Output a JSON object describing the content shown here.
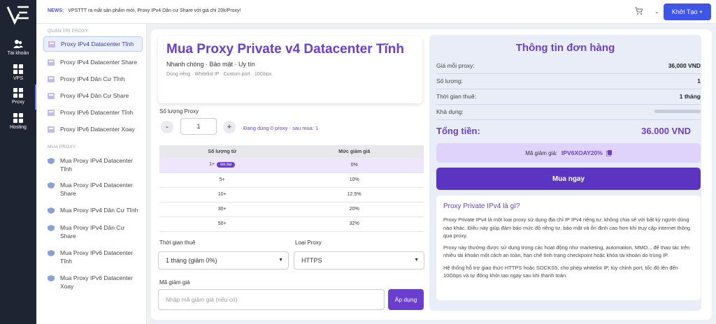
{
  "colors": {
    "primary": "#6a3fd0",
    "blue": "#3e55e8",
    "rail": "#1f2433"
  },
  "rail": {
    "items": [
      {
        "label": "Tài khoản",
        "icon": "user-icon"
      },
      {
        "label": "VPS",
        "icon": "grid-icon"
      },
      {
        "label": "Proxy",
        "icon": "grid-icon"
      },
      {
        "label": "Hosting",
        "icon": "grid-icon"
      }
    ]
  },
  "topbar": {
    "news_label": "NEWS:",
    "news_text": "VPSTTT ra mắt sản phẩm mới, Proxy IPv4 Dân cư Share với giá chỉ 20k/Proxy!",
    "create_label": "Khởi Tạo +"
  },
  "submenu": {
    "section1": "QUẢN TRỊ PROXY",
    "items1": [
      "Proxy IPv4 Datacenter Tĩnh",
      "Proxy IPv4 Datacenter Share",
      "Proxy IPv4 Dân Cư Tĩnh",
      "Proxy IPv4 Dân Cư Share",
      "Proxy IPv6 Datacenter Tĩnh",
      "Proxy IPv6 Datacenter Xoay"
    ],
    "section2": "MUA PROXY",
    "items2": [
      [
        "Mua Proxy IPv4 Datacenter",
        "Tĩnh"
      ],
      [
        "Mua Proxy IPv4 Datacenter",
        "Share"
      ],
      [
        "Mua Proxy IPv4 Dân Cư Tĩnh",
        ""
      ],
      [
        "Mua Proxy IPv4 Dân Cư",
        "Share"
      ],
      [
        "Mua Proxy IPv6 Datacenter",
        "Tĩnh"
      ],
      [
        "Mua Proxy IPv6 Datacenter",
        "Xoay"
      ]
    ]
  },
  "product": {
    "title": "Mua Proxy Private v4 Datacenter Tĩnh",
    "subtitle": "Nhanh chóng · Bảo mật · Uy tín",
    "features": "Dùng riêng · Whitelist IP · Custom port · 10Gbps"
  },
  "quantity": {
    "label": "Số lượng Proxy",
    "minus": "-",
    "plus": "+",
    "value": "1",
    "note_in_use": "Đang dùng 0 proxy",
    "note_sep": " - ",
    "note_after": "sau mua: 1"
  },
  "discount_table": {
    "headers": [
      "Số lượng từ",
      "Mức giảm giá"
    ],
    "rows": [
      [
        "1+",
        "0%"
      ],
      [
        "5+",
        "10%"
      ],
      [
        "10+",
        "12.5%"
      ],
      [
        "30+",
        "20%"
      ],
      [
        "50+",
        "32%"
      ]
    ],
    "reached_tag": "Đã đạt"
  },
  "rental": {
    "label": "Thời gian thuê",
    "value": "1 tháng (giảm 0%)"
  },
  "proxy_type": {
    "label": "Loại Proxy",
    "value": "HTTPS"
  },
  "coupon": {
    "label": "Mã giảm giá",
    "placeholder": "Nhập mã giảm giá (nếu có)",
    "apply": "Áp dụng"
  },
  "order": {
    "title": "Thông tin đơn hàng",
    "rows": [
      {
        "k": "Giá mỗi proxy:",
        "v": "36,000 VND"
      },
      {
        "k": "Số lượng:",
        "v": "1"
      },
      {
        "k": "Thời gian thuê:",
        "v": "1 tháng"
      },
      {
        "k": "Khả dụng:",
        "v": ""
      }
    ],
    "total_label": "Tổng tiền:",
    "total_value": "36.000 VND",
    "coupon_label": "Mã giảm giá:",
    "coupon_code": "IPV6XOAY20%",
    "buy": "Mua ngay"
  },
  "info": {
    "title": "Proxy Private IPv4 là gì?",
    "p1": "Proxy Private IPv4 là một loại proxy sử dụng địa chỉ IP IPv4 riêng tư, không chia sẻ với bất kỳ người dùng nào khác. Điều này giúp đảm bảo mức độ riêng tư, bảo mật và ổn định cao hơn khi truy cập internet thông qua proxy.",
    "p2": "Proxy này thường được sử dụng trong các hoạt động như marketing, automation, MMO... để thao tác trên nhiều tài khoản một cách an toàn, hạn chế tình trạng checkpoint hoặc khóa tài khoản do trùng IP.",
    "p3": "Hệ thống hỗ trợ giao thức HTTPS hoặc SOCKS5, cho phép whitelist IP, tùy chỉnh port, tốc độ lên đến 10Gbps và tự động khởi tạo ngay sau khi thanh toán."
  }
}
